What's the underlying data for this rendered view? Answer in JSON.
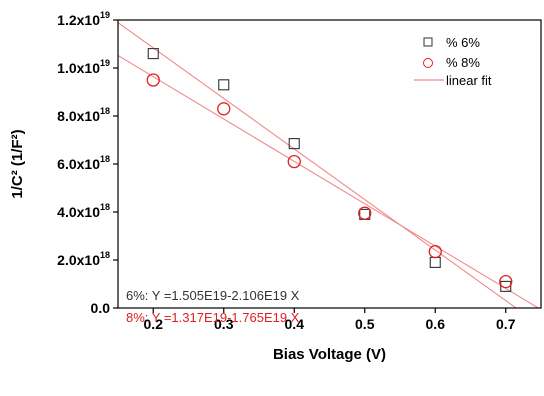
{
  "chart_data": {
    "type": "scatter",
    "xlabel": "Bias Voltage (V)",
    "ylabel": "1/C²  (1/F²)",
    "xlim": [
      0.15,
      0.75
    ],
    "ylim": [
      0,
      1.2e+19
    ],
    "x_ticks": [
      0.2,
      0.3,
      0.4,
      0.5,
      0.6,
      0.7
    ],
    "x_tick_labels": [
      "0.2",
      "0.3",
      "0.4",
      "0.5",
      "0.6",
      "0.7"
    ],
    "y_ticks": [
      {
        "value": 0,
        "mantissa": "0.0",
        "exponent": ""
      },
      {
        "value": 2e+18,
        "mantissa": "2.0x10",
        "exponent": "18"
      },
      {
        "value": 4e+18,
        "mantissa": "4.0x10",
        "exponent": "18"
      },
      {
        "value": 6e+18,
        "mantissa": "6.0x10",
        "exponent": "18"
      },
      {
        "value": 8e+18,
        "mantissa": "8.0x10",
        "exponent": "18"
      },
      {
        "value": 1e+19,
        "mantissa": "1.0x10",
        "exponent": "19"
      },
      {
        "value": 1.2e+19,
        "mantissa": "1.2x10",
        "exponent": "19"
      }
    ],
    "series": [
      {
        "name": "%  6%",
        "marker": "square",
        "color": "#333333",
        "x": [
          0.2,
          0.3,
          0.4,
          0.5,
          0.6,
          0.7
        ],
        "y": [
          1.06e+19,
          9.3e+18,
          6.85e+18,
          3.9e+18,
          1.9e+18,
          9e+17
        ],
        "fit": {
          "intercept": 1.505e+19,
          "slope": -2.106e+19,
          "equation": "6%:  Y =1.505E19-2.106E19 X",
          "eq_color": "#333333"
        }
      },
      {
        "name": "%  8%",
        "marker": "circle",
        "color": "#e02020",
        "x": [
          0.2,
          0.3,
          0.4,
          0.5,
          0.6,
          0.7
        ],
        "y": [
          9.5e+18,
          8.3e+18,
          6.1e+18,
          3.95e+18,
          2.35e+18,
          1.1e+18
        ],
        "fit": {
          "intercept": 1.317e+19,
          "slope": -1.765e+19,
          "equation": "8%:  Y =1.317E19-1.765E19 X",
          "eq_color": "#e02020"
        }
      }
    ],
    "fit_line_color": "#f08a8a",
    "fit_legend_label": "linear fit",
    "legend_position": "top-right",
    "grid": false
  }
}
